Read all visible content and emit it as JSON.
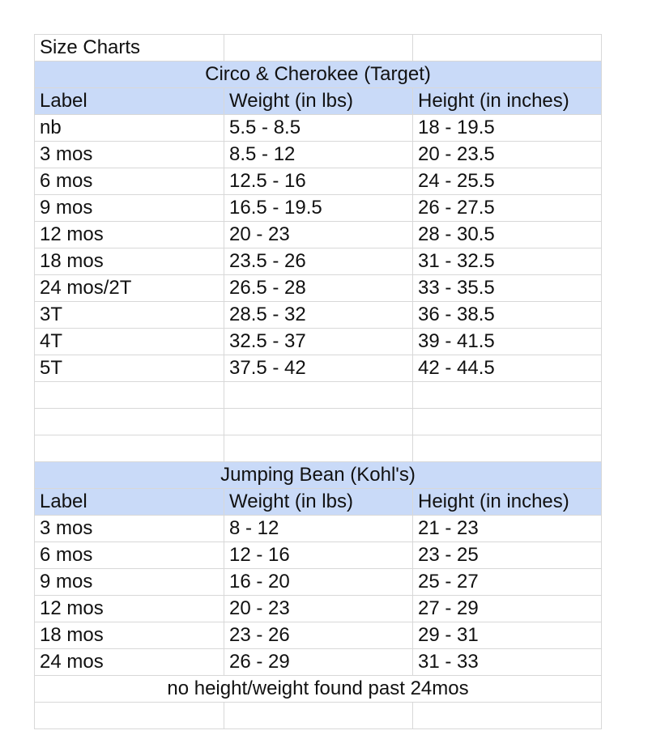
{
  "title": "Size Charts",
  "sections": [
    {
      "heading": "Circo & Cherokee (Target)",
      "columns": [
        "Label",
        "Weight (in lbs)",
        "Height (in inches)"
      ],
      "rows": [
        [
          "nb",
          "5.5 - 8.5",
          "18 - 19.5"
        ],
        [
          "3 mos",
          "8.5 - 12",
          "20 - 23.5"
        ],
        [
          "6 mos",
          "12.5 - 16",
          "24 - 25.5"
        ],
        [
          "9 mos",
          "16.5 - 19.5",
          "26 - 27.5"
        ],
        [
          "12 mos",
          "20 - 23",
          "28 - 30.5"
        ],
        [
          "18 mos",
          "23.5 - 26",
          "31 - 32.5"
        ],
        [
          "24 mos/2T",
          "26.5 - 28",
          "33 - 35.5"
        ],
        [
          "3T",
          "28.5 - 32",
          "36 - 38.5"
        ],
        [
          "4T",
          "32.5 - 37",
          "39 - 41.5"
        ],
        [
          "5T",
          "37.5 - 42",
          "42 - 44.5"
        ]
      ]
    },
    {
      "heading": "Jumping Bean (Kohl's)",
      "columns": [
        "Label",
        "Weight (in lbs)",
        "Height (in inches)"
      ],
      "rows": [
        [
          "3 mos",
          "8 - 12",
          "21 - 23"
        ],
        [
          "6 mos",
          "12 - 16",
          "23 - 25"
        ],
        [
          "9 mos",
          "16 - 20",
          "25 - 27"
        ],
        [
          "12 mos",
          "20 - 23",
          "27 - 29"
        ],
        [
          "18 mos",
          "23 - 26",
          "29 - 31"
        ],
        [
          "24 mos",
          "26 - 29",
          "31 - 33"
        ]
      ]
    }
  ],
  "note": "no height/weight found past 24mos"
}
